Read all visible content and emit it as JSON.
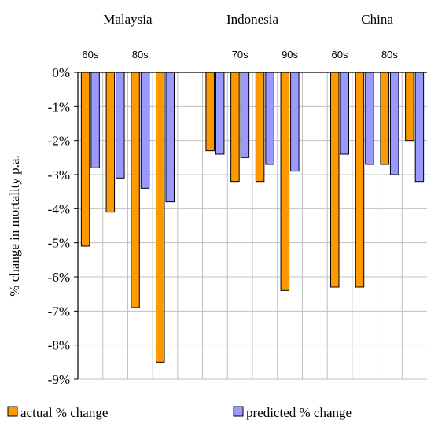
{
  "chart_data": {
    "type": "bar",
    "ylabel": "% change in mortality p.a.",
    "ylim": [
      -9,
      0
    ],
    "yticks": [
      "0%",
      "-1%",
      "-2%",
      "-3%",
      "-4%",
      "-5%",
      "-6%",
      "-7%",
      "-8%",
      "-9%"
    ],
    "grid": true,
    "legend_position": "bottom",
    "groups": [
      {
        "label": "Malaysia",
        "slots": [
          {
            "tick": "60s",
            "actual": -5.1,
            "predicted": -2.8
          },
          {
            "tick": "",
            "actual": -4.1,
            "predicted": -3.1
          },
          {
            "tick": "80s",
            "actual": -6.9,
            "predicted": -3.4
          },
          {
            "tick": "",
            "actual": -8.5,
            "predicted": -3.8
          }
        ]
      },
      {
        "label": "Indonesia",
        "slots": [
          {
            "tick": "",
            "actual": null,
            "predicted": null
          },
          {
            "tick": "",
            "actual": -2.3,
            "predicted": -2.4
          },
          {
            "tick": "70s",
            "actual": -3.2,
            "predicted": -2.5
          },
          {
            "tick": "",
            "actual": -3.2,
            "predicted": -2.7
          },
          {
            "tick": "90s",
            "actual": -6.4,
            "predicted": -2.9
          }
        ]
      },
      {
        "label": "China",
        "slots": [
          {
            "tick": "",
            "actual": null,
            "predicted": null
          },
          {
            "tick": "60s",
            "actual": -6.3,
            "predicted": -2.4
          },
          {
            "tick": "",
            "actual": -6.3,
            "predicted": -2.7
          },
          {
            "tick": "80s",
            "actual": -2.7,
            "predicted": -3.0
          },
          {
            "tick": "",
            "actual": -2.0,
            "predicted": -3.2
          }
        ]
      }
    ],
    "series": [
      {
        "name": "actual % change",
        "key": "actual",
        "color": "#ff9900"
      },
      {
        "name": "predicted % change",
        "key": "predicted",
        "color": "#9999ff"
      }
    ]
  }
}
